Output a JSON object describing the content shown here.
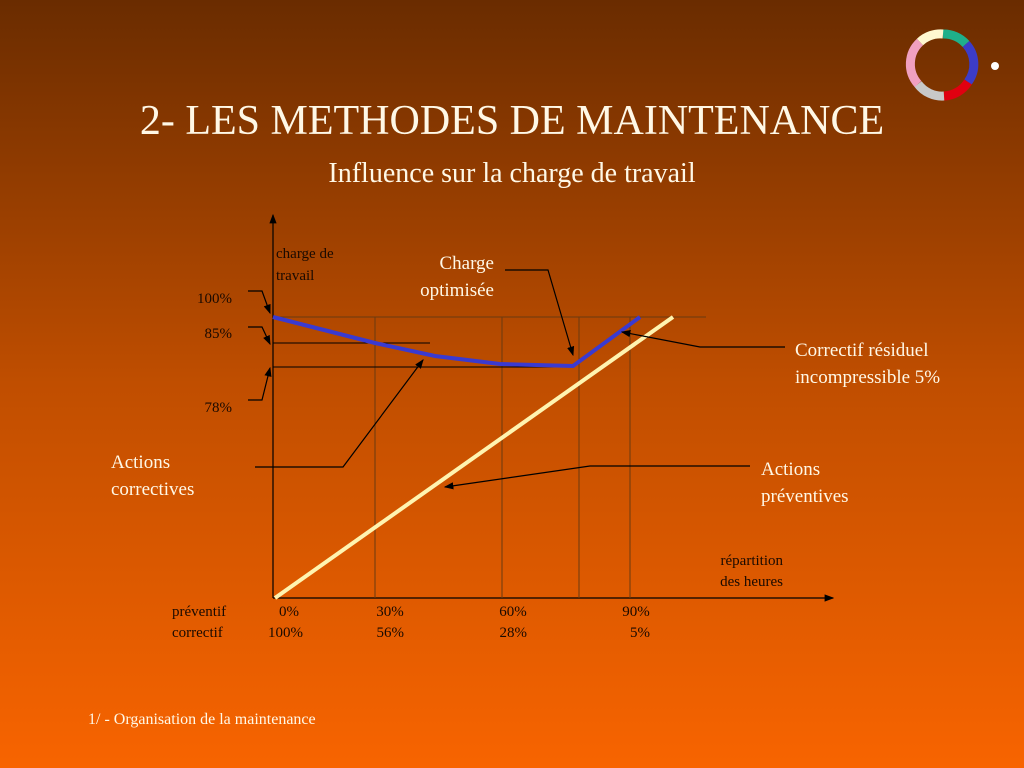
{
  "header": {
    "title": "2- LES METHODES DE MAINTENANCE",
    "subtitle": "Influence sur la charge de travail"
  },
  "diagram": {
    "y_axis_label": [
      "charge de",
      "travail"
    ],
    "y_labels": [
      "100%",
      "85%",
      "78%"
    ],
    "x_axis_label": [
      "répartition",
      "des heures"
    ],
    "annotations": {
      "charge_optimisee": [
        "Charge",
        "optimisée"
      ],
      "correctif_residuel": [
        "Correctif résiduel",
        "incompressible 5%"
      ],
      "actions_correctives": [
        "Actions",
        "correctives"
      ],
      "actions_preventives": [
        "Actions",
        "préventives"
      ]
    },
    "rows": [
      {
        "label": "préventif",
        "values": [
          "0%",
          "30%",
          "60%",
          "90%"
        ]
      },
      {
        "label": "correctif",
        "values": [
          "100%",
          "56%",
          "28%",
          "5%"
        ]
      }
    ]
  },
  "footer": "1/ - Organisation de la maintenance"
}
